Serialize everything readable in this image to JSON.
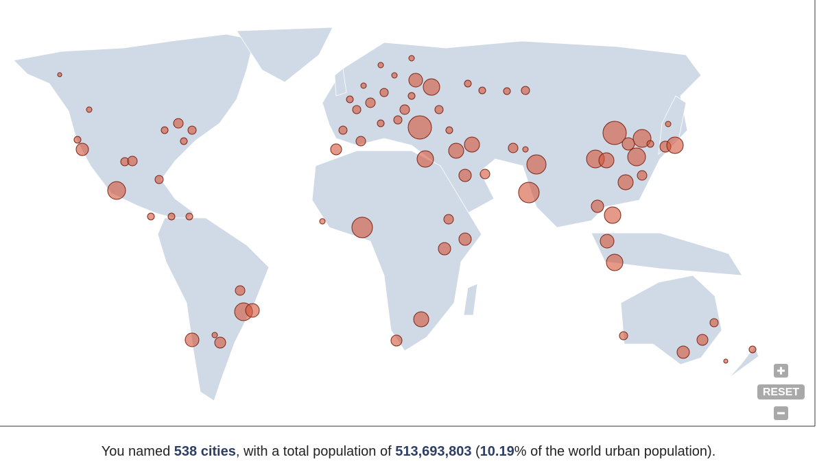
{
  "map": {
    "zoom": {
      "reset_label": "RESET"
    }
  },
  "summary": {
    "prefix": "You named ",
    "cities": "538 cities",
    "middle": ", with a total population of ",
    "population": "513,693,803",
    "open": " (",
    "share": "10.19",
    "suffix": "% of the world urban population)."
  }
}
